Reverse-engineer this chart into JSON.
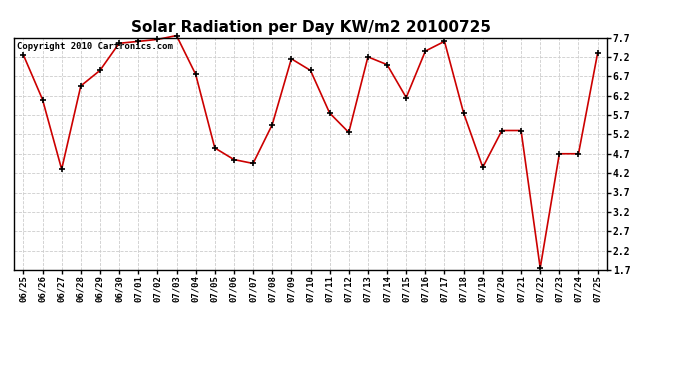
{
  "title": "Solar Radiation per Day KW/m2 20100725",
  "copyright_text": "Copyright 2010 Cartronics.com",
  "dates": [
    "06/25",
    "06/26",
    "06/27",
    "06/28",
    "06/29",
    "06/30",
    "07/01",
    "07/02",
    "07/03",
    "07/04",
    "07/05",
    "07/06",
    "07/07",
    "07/08",
    "07/09",
    "07/10",
    "07/11",
    "07/12",
    "07/13",
    "07/14",
    "07/15",
    "07/16",
    "07/17",
    "07/18",
    "07/19",
    "07/20",
    "07/21",
    "07/22",
    "07/23",
    "07/24",
    "07/25"
  ],
  "values": [
    7.25,
    6.1,
    4.3,
    6.45,
    6.85,
    7.55,
    7.6,
    7.65,
    7.75,
    6.75,
    4.85,
    4.55,
    4.45,
    5.45,
    7.15,
    6.85,
    5.75,
    5.25,
    7.2,
    7.0,
    6.15,
    7.35,
    7.6,
    5.75,
    4.35,
    5.3,
    5.3,
    1.75,
    4.7,
    4.7,
    7.3
  ],
  "line_color": "#cc0000",
  "marker": "+",
  "markersize": 5,
  "markeredgewidth": 1.2,
  "linewidth": 1.2,
  "ylim": [
    1.7,
    7.7
  ],
  "yticks": [
    1.7,
    2.2,
    2.7,
    3.2,
    3.7,
    4.2,
    4.7,
    5.2,
    5.7,
    6.2,
    6.7,
    7.2,
    7.7
  ],
  "bg_color": "#ffffff",
  "grid_color": "#cccccc",
  "title_fontsize": 11,
  "copyright_fontsize": 6.5,
  "tick_fontsize": 6.5,
  "ytick_fontsize": 7
}
